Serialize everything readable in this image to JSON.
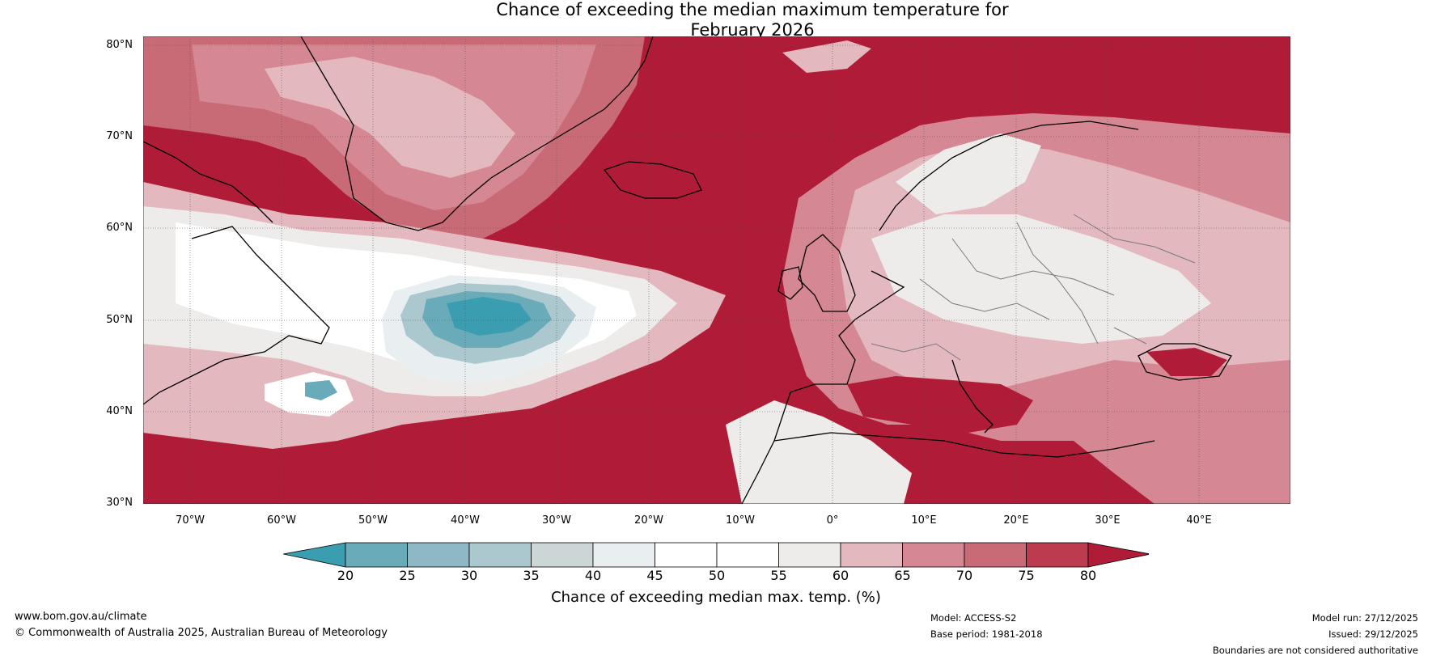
{
  "title": {
    "line1": "Chance of exceeding the median maximum temperature for",
    "line2": "February 2026"
  },
  "lat_labels": [
    "80°N",
    "70°N",
    "60°N",
    "50°N",
    "40°N",
    "30°N"
  ],
  "lon_labels": [
    "70°W",
    "60°W",
    "50°W",
    "40°W",
    "30°W",
    "20°W",
    "10°W",
    "0°",
    "10°E",
    "20°E",
    "30°E",
    "40°E"
  ],
  "legend": {
    "ticks": [
      "20",
      "25",
      "30",
      "35",
      "40",
      "45",
      "50",
      "55",
      "60",
      "65",
      "70",
      "75",
      "80"
    ],
    "colors": [
      "#3a9db0",
      "#6aabb9",
      "#8db8c4",
      "#acc8cf",
      "#cdd6d7",
      "#e9eff1",
      "#ffffff",
      "#ffffff",
      "#eeeceb",
      "#e3b8be",
      "#d58893",
      "#c96a77",
      "#bd3b4e",
      "#b01c37"
    ],
    "label": "Chance of exceeding median max. temp. (%)"
  },
  "colors": {
    "ocean_red": "#b01c37",
    "mid_red": "#c96a77",
    "light_red": "#d58893",
    "pink": "#e3b8be",
    "near_white": "#eeeceb",
    "white": "#ffffff",
    "light_blue": "#acc8cf",
    "teal": "#3a9db0"
  },
  "footer": {
    "website": "www.bom.gov.au/climate",
    "copyright": "© Commonwealth of Australia 2025, Australian Bureau of Meteorology",
    "model": "Model: ACCESS-S2",
    "base_period": "Base period: 1981-2018",
    "model_run": "Model run: 27/12/2025",
    "issued": "Issued: 29/12/2025",
    "disclaimer": "Boundaries are not considered authoritative"
  }
}
